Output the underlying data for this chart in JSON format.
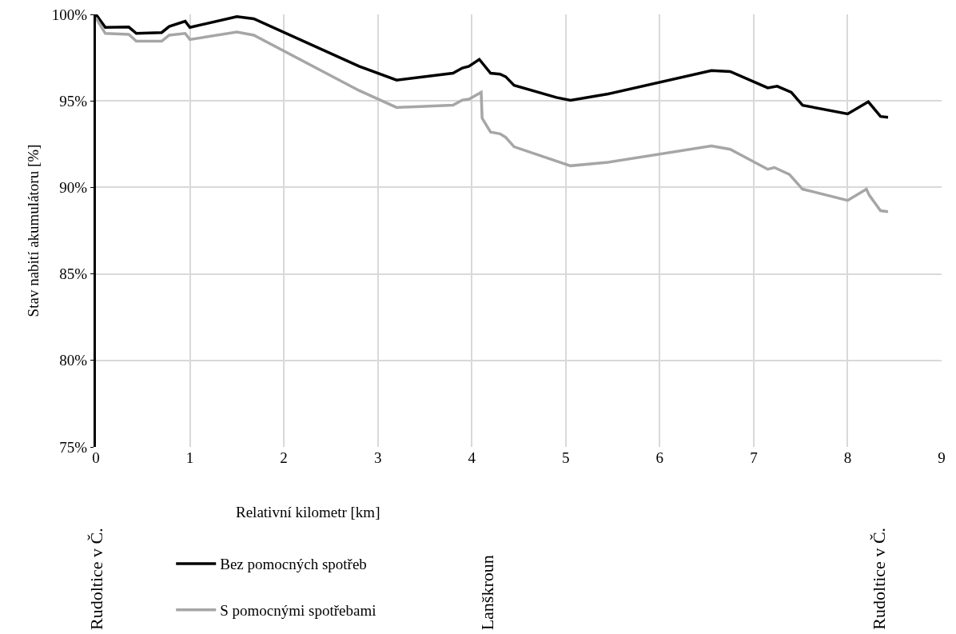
{
  "chart_data": {
    "type": "line",
    "xlabel": "Relativní kilometr [km]",
    "ylabel": "Stav nabití akumulátoru [%]",
    "xlim": [
      0,
      9
    ],
    "xticks": [
      0,
      1,
      2,
      3,
      4,
      5,
      6,
      7,
      8,
      9
    ],
    "ylim": [
      75,
      100
    ],
    "yticks": [
      {
        "value": 75,
        "label": "75%"
      },
      {
        "value": 80,
        "label": "80%"
      },
      {
        "value": 85,
        "label": "85%"
      },
      {
        "value": 90,
        "label": "90%"
      },
      {
        "value": 95,
        "label": "95%"
      },
      {
        "value": 100,
        "label": "100%"
      }
    ],
    "grid": true,
    "legend": "bottom",
    "marker": "none",
    "line_style": "solid",
    "series": [
      {
        "name": "Bez pomocných spotřeb",
        "color": "#000000",
        "x": [
          0,
          0.1,
          0.35,
          0.43,
          0.7,
          0.78,
          0.95,
          1.0,
          1.5,
          1.68,
          2.8,
          3.2,
          3.8,
          3.9,
          3.97,
          4.08,
          4.2,
          4.3,
          4.36,
          4.45,
          4.9,
          5.05,
          5.45,
          6.55,
          6.75,
          7.15,
          7.25,
          7.4,
          7.52,
          8.0,
          8.22,
          8.35,
          8.43
        ],
        "values": [
          100,
          99.25,
          99.27,
          98.9,
          98.95,
          99.3,
          99.6,
          99.25,
          99.87,
          99.75,
          97,
          96.2,
          96.6,
          96.9,
          97.0,
          97.4,
          96.6,
          96.55,
          96.4,
          95.9,
          95.2,
          95.03,
          95.4,
          96.75,
          96.7,
          95.75,
          95.85,
          95.5,
          94.75,
          94.25,
          94.95,
          94.1,
          94.05
        ]
      },
      {
        "name": "S pomocnými spotřebami",
        "color": "#a6a6a6",
        "x": [
          0,
          0.1,
          0.35,
          0.43,
          0.7,
          0.78,
          0.95,
          1.0,
          1.5,
          1.68,
          2.8,
          3.2,
          3.8,
          3.9,
          3.97,
          4.1,
          4.11,
          4.2,
          4.3,
          4.36,
          4.45,
          5.05,
          5.45,
          6.55,
          6.75,
          7.15,
          7.22,
          7.38,
          7.52,
          8.0,
          8.2,
          8.23,
          8.35,
          8.43
        ],
        "values": [
          99.8,
          98.9,
          98.85,
          98.45,
          98.45,
          98.8,
          98.9,
          98.55,
          98.98,
          98.8,
          95.6,
          94.62,
          94.75,
          95.05,
          95.1,
          95.5,
          94,
          93.2,
          93.1,
          92.9,
          92.35,
          91.25,
          91.45,
          92.4,
          92.2,
          91.05,
          91.15,
          90.75,
          89.9,
          89.25,
          89.9,
          89.55,
          88.65,
          88.6
        ]
      }
    ],
    "annotations": [
      "Rudoltice v Č.",
      "Lanškroun",
      "Rudoltice v Č."
    ]
  }
}
